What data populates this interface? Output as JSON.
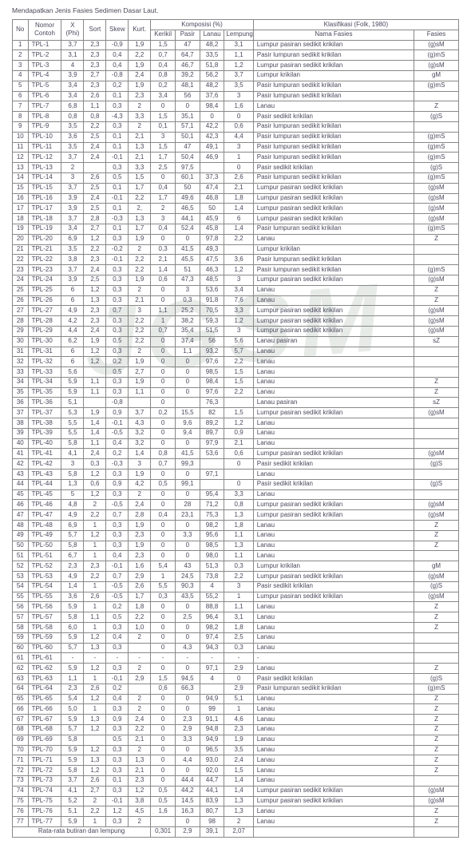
{
  "caption": "Mendapatkan Jenis Fasies Sedimen Dasar Laut.",
  "watermark": "JGSM",
  "headers": {
    "no": "No",
    "nomor_contoh": "Nomor Contoh",
    "x_phi": "X (Phi)",
    "sort": "Sort",
    "skew": "Skew",
    "kurt": "Kurt.",
    "komposisi": "Komposisi (%)",
    "kerikil": "Kerikil",
    "pasir": "Pasir",
    "lanau": "Lanau",
    "lempung": "Lempung",
    "klasifikasi": "Klasifikasi (Folk, 1980)",
    "nama_fasies": "Nama Fasies",
    "fasies": "Fasies"
  },
  "footer": {
    "label": "Rata-rata butiran dan lempung",
    "v": [
      "0,301",
      "2,9",
      "39,1",
      "2,07",
      "",
      ""
    ]
  },
  "rows": [
    {
      "n": 1,
      "c": "TPL-1",
      "x": "3,7",
      "so": "2,3",
      "sk": "-0,9",
      "ku": "1,9",
      "kr": "1,5",
      "pa": "47",
      "la": "48,2",
      "le": "3,1",
      "nf": "Lumpur pasiran sedikit krikilan",
      "f": "(g)sM"
    },
    {
      "n": 2,
      "c": "TPL-2",
      "x": "3,1",
      "so": "2,3",
      "sk": "0,4",
      "ku": "2,2",
      "kr": "0,7",
      "pa": "64,7",
      "la": "33,5",
      "le": "1,1",
      "nf": "Pasir lumpuran sedikit krikilan",
      "f": "(g)mS"
    },
    {
      "n": 3,
      "c": "TPL-3",
      "x": "4",
      "so": "2,3",
      "sk": "0,4",
      "ku": "1,9",
      "kr": "0,4",
      "pa": "46,7",
      "la": "51,8",
      "le": "1,2",
      "nf": "Lumpur pasiran sedikit krikilan",
      "f": "(g)sM"
    },
    {
      "n": 4,
      "c": "TPL-4",
      "x": "3,9",
      "so": "2,7",
      "sk": "-0,8",
      "ku": "2,4",
      "kr": "0,8",
      "pa": "39,2",
      "la": "56,2",
      "le": "3,7",
      "nf": "Lumpur krikilan",
      "f": "gM"
    },
    {
      "n": 5,
      "c": "TPL-5",
      "x": "3,4",
      "so": "2,3",
      "sk": "0,2",
      "ku": "1,9",
      "kr": "0,2",
      "pa": "48,1",
      "la": "48,2",
      "le": "3,5",
      "nf": "Pasir lumpuran sedikit krikilan",
      "f": "(g)mS"
    },
    {
      "n": 6,
      "c": "TPL-6",
      "x": "3,4",
      "so": "2,6",
      "sk": "0,1",
      "ku": "2,3",
      "kr": "3,4",
      "pa": "56",
      "la": "37,6",
      "le": "3",
      "nf": "Pasir lumpuran sedikit krikilan",
      "f": ""
    },
    {
      "n": 7,
      "c": "TPL-7",
      "x": "6,8",
      "so": "1,1",
      "sk": "0,3",
      "ku": "2",
      "kr": "0",
      "pa": "0",
      "la": "98,4",
      "le": "1,6",
      "nf": "Lanau",
      "f": "Z"
    },
    {
      "n": 8,
      "c": "TPL-8",
      "x": "0,8",
      "so": "0,8",
      "sk": "-4,3",
      "ku": "3,3",
      "kr": "1,5",
      "pa": "35,1",
      "la": "0",
      "le": "0",
      "nf": "Pasir sedikit krikilan",
      "f": "(g)S"
    },
    {
      "n": 9,
      "c": "TPL-9",
      "x": "3,5",
      "so": "2,2",
      "sk": "0,3",
      "ku": "2",
      "kr": "0,1",
      "pa": "57,1",
      "la": "42,2",
      "le": "0,6",
      "nf": "Pasir lumpuran sedikit krikilan",
      "f": ""
    },
    {
      "n": 10,
      "c": "TPL-10",
      "x": "3,6",
      "so": "2,5",
      "sk": "0,1",
      "ku": "2,1",
      "kr": "3",
      "pa": "50,1",
      "la": "42,3",
      "le": "4,4",
      "nf": "Pasir lumpuran sedikit krikilan",
      "f": "(g)mS"
    },
    {
      "n": 11,
      "c": "TPL-11",
      "x": "3,5",
      "so": "2,4",
      "sk": "0,1",
      "ku": "1,3",
      "kr": "1,5",
      "pa": "47",
      "la": "49,1",
      "le": "3",
      "nf": "Pasir lumpuran sedikit krikilan",
      "f": "(g)mS"
    },
    {
      "n": 12,
      "c": "TPL-12",
      "x": "3,7",
      "so": "2,4",
      "sk": "-0,1",
      "ku": "2,1",
      "kr": "1,7",
      "pa": "50,4",
      "la": "46,9",
      "le": "1",
      "nf": "Pasir lumpuran sedikit krikilan",
      "f": "(g)mS"
    },
    {
      "n": 13,
      "c": "TPL-13",
      "x": "2",
      "so": "",
      "sk": "0,3",
      "ku": "3,3",
      "kr": "2,5",
      "pa": "97,5",
      "la": "",
      "le": "0",
      "nf": "Pasir sedikit krikilan",
      "f": "(g)S"
    },
    {
      "n": 14,
      "c": "TPL-14",
      "x": "3",
      "so": "2,6",
      "sk": "0,5",
      "ku": "1,5",
      "kr": "0",
      "pa": "60,1",
      "la": "37,3",
      "le": "2,6",
      "nf": "Pasir lumpuran sedikit krikilan",
      "f": "(g)mS"
    },
    {
      "n": 15,
      "c": "TPL-15",
      "x": "3,7",
      "so": "2,5",
      "sk": "0,1",
      "ku": "1,7",
      "kr": "0,4",
      "pa": "50",
      "la": "47,4",
      "le": "2,1",
      "nf": "Lumpur pasiran sedikit krikilan",
      "f": "(g)sM"
    },
    {
      "n": 16,
      "c": "TPL-16",
      "x": "3,9",
      "so": "2,4",
      "sk": "-0,1",
      "ku": "2,2",
      "kr": "1,7",
      "pa": "49,6",
      "la": "46,8",
      "le": "1,8",
      "nf": "Lumpur pasiran sedikit krikilan",
      "f": "(g)sM"
    },
    {
      "n": 17,
      "c": "TPL-17",
      "x": "3,9",
      "so": "2,5",
      "sk": "0,1",
      "ku": "2,",
      "kr": "2",
      "pa": "46,5",
      "la": "50",
      "le": "1,4",
      "nf": "Lumpur pasiran sedikit krikilan",
      "f": "(g)sM"
    },
    {
      "n": 18,
      "c": "TPL-18",
      "x": "3,7",
      "so": "2,8",
      "sk": "-0,3",
      "ku": "1,3",
      "kr": "3",
      "pa": "44,1",
      "la": "45,9",
      "le": "6",
      "nf": "Lumpur pasiran sedikit krikilan",
      "f": "(g)sM"
    },
    {
      "n": 19,
      "c": "TPL-19",
      "x": "3,4",
      "so": "2,7",
      "sk": "0,1",
      "ku": "1,7",
      "kr": "0,4",
      "pa": "52,4",
      "la": "45,8",
      "le": "1,4",
      "nf": "Pasir lumpuran sedikit krikilan",
      "f": "(g)mS"
    },
    {
      "n": 20,
      "c": "TPL-20",
      "x": "6,9",
      "so": "1,2",
      "sk": "0,3",
      "ku": "1,9",
      "kr": "0",
      "pa": "0",
      "la": "97,8",
      "le": "2,2",
      "nf": "Lanau",
      "f": "Z"
    },
    {
      "n": 21,
      "c": "TPL-21",
      "x": "3,5",
      "so": "2,2",
      "sk": "-0,2",
      "ku": "2",
      "kr": "0,3",
      "pa": "41,5",
      "la": "49,3",
      "le": "",
      "nf": "Lumpur krikilan",
      "f": ""
    },
    {
      "n": 22,
      "c": "TPL-22",
      "x": "3,8",
      "so": "2,3",
      "sk": "-0,1",
      "ku": "2,2",
      "kr": "2,1",
      "pa": "45,5",
      "la": "47,5",
      "le": "3,6",
      "nf": "Pasir lumpuran sedikit krikilan",
      "f": ""
    },
    {
      "n": 23,
      "c": "TPL-23",
      "x": "3,7",
      "so": "2,4",
      "sk": "0,3",
      "ku": "2,2",
      "kr": "1,4",
      "pa": "51",
      "la": "46,3",
      "le": "1,2",
      "nf": "Pasir lumpuran sedikit krikilan",
      "f": "(g)mS"
    },
    {
      "n": 24,
      "c": "TPL-24",
      "x": "3,9",
      "so": "2,5",
      "sk": "0,3",
      "ku": "1,9",
      "kr": "0,6",
      "pa": "47,3",
      "la": "48,5",
      "le": "3",
      "nf": "Lumpur pasiran sedikit krikilan",
      "f": "(g)sM"
    },
    {
      "n": 25,
      "c": "TPL-25",
      "x": "6",
      "so": "1,2",
      "sk": "0,3",
      "ku": "2",
      "kr": "0",
      "pa": "3",
      "la": "53,6",
      "le": "3,4",
      "nf": "Lanau",
      "f": "Z"
    },
    {
      "n": 26,
      "c": "TPL-26",
      "x": "6",
      "so": "1,3",
      "sk": "0,3",
      "ku": "2,1",
      "kr": "0",
      "pa": "0,3",
      "la": "91,8",
      "le": "7,6",
      "nf": "Lanau",
      "f": "Z"
    },
    {
      "n": 27,
      "c": "TPL-27",
      "x": "4,9",
      "so": "2,3",
      "sk": "0,7",
      "ku": "3",
      "kr": "1,1",
      "pa": "25,2",
      "la": "70,5",
      "le": "3,3",
      "nf": "Lumpur pasiran sedikit krikilan",
      "f": "(g)sM"
    },
    {
      "n": 28,
      "c": "TPL-28",
      "x": "4,2",
      "so": "2,3",
      "sk": "0,3",
      "ku": "2,2",
      "kr": "1",
      "pa": "38,2",
      "la": "59,3",
      "le": "1,2",
      "nf": "Lumpur pasiran sedikit krikilan",
      "f": "(g)sM"
    },
    {
      "n": 29,
      "c": "TPL-29",
      "x": "4,4",
      "so": "2,4",
      "sk": "0,3",
      "ku": "2,2",
      "kr": "0,7",
      "pa": "35,4",
      "la": "51,5",
      "le": "3",
      "nf": "Lumpur pasiran sedikit krikilan",
      "f": "(g)sM"
    },
    {
      "n": 30,
      "c": "TPL-30",
      "x": "6,2",
      "so": "1,9",
      "sk": "0,5",
      "ku": "2,2",
      "kr": "0",
      "pa": "37,4",
      "la": "56",
      "le": "5,6",
      "nf": "Lanau pasiran",
      "f": "sZ"
    },
    {
      "n": 31,
      "c": "TPL-31",
      "x": "6",
      "so": "1,2",
      "sk": "0,3",
      "ku": "2",
      "kr": "0",
      "pa": "1,1",
      "la": "93,2",
      "le": "5,7",
      "nf": "Lanau",
      "f": ""
    },
    {
      "n": 32,
      "c": "TPL-32",
      "x": "6",
      "so": "1,2",
      "sk": "0,2",
      "ku": "1,9",
      "kr": "0",
      "pa": "0",
      "la": "97,6",
      "le": "2,2",
      "nf": "Lanau",
      "f": ""
    },
    {
      "n": 33,
      "c": "TPL-33",
      "x": "5,6",
      "so": "",
      "sk": "0,5",
      "ku": "2,7",
      "kr": "0",
      "pa": "0",
      "la": "98,5",
      "le": "1,5",
      "nf": "Lanau",
      "f": ""
    },
    {
      "n": 34,
      "c": "TPL-34",
      "x": "5,9",
      "so": "1,1",
      "sk": "0,3",
      "ku": "1,9",
      "kr": "0",
      "pa": "0",
      "la": "98,4",
      "le": "1,5",
      "nf": "Lanau",
      "f": "Z"
    },
    {
      "n": 35,
      "c": "TPL-35",
      "x": "5,9",
      "so": "1,1",
      "sk": "0,3",
      "ku": "1,1",
      "kr": "0",
      "pa": "0",
      "la": "97,6",
      "le": "2,2",
      "nf": "Lanau",
      "f": "Z"
    },
    {
      "n": 36,
      "c": "TPL-36",
      "x": "5,1",
      "so": "",
      "sk": "-0,8",
      "ku": "",
      "kr": "0",
      "pa": "",
      "la": "76,3",
      "le": "",
      "nf": "Lanau pasiran",
      "f": "sZ"
    },
    {
      "n": 37,
      "c": "TPL-37",
      "x": "5,3",
      "so": "1,9",
      "sk": "0,9",
      "ku": "3,7",
      "kr": "0,2",
      "pa": "15,5",
      "la": "82",
      "le": "1,5",
      "nf": "Lumpur pasiran sedikit krikilan",
      "f": "(g)sM"
    },
    {
      "n": 38,
      "c": "TPL-38",
      "x": "5,5",
      "so": "1,4",
      "sk": "-0,1",
      "ku": "4,3",
      "kr": "0",
      "pa": "9,6",
      "la": "89,2",
      "le": "1,2",
      "nf": "Lanau",
      "f": ""
    },
    {
      "n": 39,
      "c": "TPL-39",
      "x": "5,5",
      "so": "1,4",
      "sk": "-0,5",
      "ku": "3,2",
      "kr": "0",
      "pa": "9,4",
      "la": "89,7",
      "le": "0,9",
      "nf": "Lanau",
      "f": ""
    },
    {
      "n": 40,
      "c": "TPL-40",
      "x": "5,8",
      "so": "1,1",
      "sk": "0,4",
      "ku": "3,2",
      "kr": "0",
      "pa": "0",
      "la": "97,9",
      "le": "2,1",
      "nf": "Lanau",
      "f": ""
    },
    {
      "n": 41,
      "c": "TPL-41",
      "x": "4,1",
      "so": "2,4",
      "sk": "0,2",
      "ku": "1,4",
      "kr": "0,8",
      "pa": "41,5",
      "la": "53,6",
      "le": "0,6",
      "nf": "Lumpur pasiran sedikit krikilan",
      "f": "(g)sM"
    },
    {
      "n": 42,
      "c": "TPL-42",
      "x": "3",
      "so": "0,3",
      "sk": "-0,3",
      "ku": "3",
      "kr": "0,7",
      "pa": "99,3",
      "la": "",
      "le": "0",
      "nf": "Pasir sedikit krikilan",
      "f": "(g)S"
    },
    {
      "n": 43,
      "c": "TPL-43",
      "x": "5,8",
      "so": "1,2",
      "sk": "0,3",
      "ku": "1,9",
      "kr": "0",
      "pa": "0",
      "la": "97,1",
      "le": "",
      "nf": "Lanau",
      "f": ""
    },
    {
      "n": 44,
      "c": "TPL-44",
      "x": "1,3",
      "so": "0,6",
      "sk": "0,9",
      "ku": "4,2",
      "kr": "0,5",
      "pa": "99,1",
      "la": "",
      "le": "0",
      "nf": "Pasir sedikit krikilan",
      "f": "(g)S"
    },
    {
      "n": 45,
      "c": "TPL-45",
      "x": "5",
      "so": "1,2",
      "sk": "0,3",
      "ku": "2",
      "kr": "0",
      "pa": "0",
      "la": "95,4",
      "le": "3,3",
      "nf": "Lanau",
      "f": ""
    },
    {
      "n": 46,
      "c": "TPL-46",
      "x": "4,8",
      "so": "2",
      "sk": "-0,5",
      "ku": "2,4",
      "kr": "0",
      "pa": "28",
      "la": "71,2",
      "le": "0,8",
      "nf": "Lumpur pasiran sedikit krikilan",
      "f": "(g)sM"
    },
    {
      "n": 47,
      "c": "TPL-47",
      "x": "4,9",
      "so": "2,2",
      "sk": "0,7",
      "ku": "2,8",
      "kr": "0,4",
      "pa": "23,1",
      "la": "75,3",
      "le": "1,3",
      "nf": "Lumpur pasiran sedikit krikilan",
      "f": "(g)sM"
    },
    {
      "n": 48,
      "c": "TPL-48",
      "x": "6,9",
      "so": "1",
      "sk": "0,3",
      "ku": "1,9",
      "kr": "0",
      "pa": "0",
      "la": "98,2",
      "le": "1,8",
      "nf": "Lanau",
      "f": "Z"
    },
    {
      "n": 49,
      "c": "TPL-49",
      "x": "5,7",
      "so": "1,2",
      "sk": "0,3",
      "ku": "2,3",
      "kr": "0",
      "pa": "3,3",
      "la": "95,6",
      "le": "1,1",
      "nf": "Lanau",
      "f": "Z"
    },
    {
      "n": 50,
      "c": "TPL-50",
      "x": "5,8",
      "so": "1",
      "sk": "0,3",
      "ku": "1,9",
      "kr": "0",
      "pa": "0",
      "la": "98,5",
      "le": "1,3",
      "nf": "Lanau",
      "f": "Z"
    },
    {
      "n": 51,
      "c": "TPL-51",
      "x": "6,7",
      "so": "1",
      "sk": "0,4",
      "ku": "2,3",
      "kr": "0",
      "pa": "0",
      "la": "98,0",
      "le": "1,1",
      "nf": "Lanau",
      "f": ""
    },
    {
      "n": 52,
      "c": "TPL-52",
      "x": "2,3",
      "so": "2,3",
      "sk": "-0,1",
      "ku": "1,6",
      "kr": "5,4",
      "pa": "43",
      "la": "51,3",
      "le": "0,3",
      "nf": "Lumpur krikilan",
      "f": "gM"
    },
    {
      "n": 53,
      "c": "TPL-53",
      "x": "4,9",
      "so": "2,2",
      "sk": "0,7",
      "ku": "2,9",
      "kr": "1",
      "pa": "24,5",
      "la": "73,8",
      "le": "2,2",
      "nf": "Lumpur pasiran sedikit krikilan",
      "f": "(g)sM"
    },
    {
      "n": 54,
      "c": "TPL-54",
      "x": "1,4",
      "so": "1",
      "sk": "-0,5",
      "ku": "2,6",
      "kr": "5,5",
      "pa": "90,3",
      "la": "4",
      "le": "3",
      "nf": "Pasir sedikit krikilan",
      "f": "(g)S"
    },
    {
      "n": 55,
      "c": "TPL-55",
      "x": "3,6",
      "so": "2,6",
      "sk": "-0,5",
      "ku": "1,7",
      "kr": "0,3",
      "pa": "43,5",
      "la": "55,2",
      "le": "1",
      "nf": "Lumpur pasiran sedikit krikilan",
      "f": "(g)sM"
    },
    {
      "n": 56,
      "c": "TPL-56",
      "x": "5,9",
      "so": "1",
      "sk": "0,2",
      "ku": "1,8",
      "kr": "0",
      "pa": "0",
      "la": "88,8",
      "le": "1,1",
      "nf": "Lanau",
      "f": "Z"
    },
    {
      "n": 57,
      "c": "TPL-57",
      "x": "5,8",
      "so": "1,1",
      "sk": "0,5",
      "ku": "2,2",
      "kr": "0",
      "pa": "2,5",
      "la": "96,4",
      "le": "3,1",
      "nf": "Lanau",
      "f": "Z"
    },
    {
      "n": 58,
      "c": "TPL-58",
      "x": "6,0",
      "so": "1",
      "sk": "0,3",
      "ku": "1,0",
      "kr": "0",
      "pa": "0",
      "la": "98,2",
      "le": "1,8",
      "nf": "Lanau",
      "f": "Z"
    },
    {
      "n": 59,
      "c": "TPL-59",
      "x": "5,9",
      "so": "1,2",
      "sk": "0,4",
      "ku": "2",
      "kr": "0",
      "pa": "0",
      "la": "97,4",
      "le": "2,5",
      "nf": "Lanau",
      "f": ""
    },
    {
      "n": 60,
      "c": "TPL-60",
      "x": "5,7",
      "so": "1,3",
      "sk": "0,3",
      "ku": "",
      "kr": "0",
      "pa": "4,3",
      "la": "94,3",
      "le": "0,3",
      "nf": "Lanau",
      "f": ""
    },
    {
      "n": 61,
      "c": "TPL-61",
      "x": "-",
      "so": "-",
      "sk": "-",
      "ku": "-",
      "kr": "-",
      "pa": "-",
      "la": "-",
      "le": "-",
      "nf": "-",
      "f": ""
    },
    {
      "n": 62,
      "c": "TPL-62",
      "x": "5,9",
      "so": "1,2",
      "sk": "0,3",
      "ku": "2",
      "kr": "0",
      "pa": "0",
      "la": "97,1",
      "le": "2,9",
      "nf": "Lanau",
      "f": "Z"
    },
    {
      "n": 63,
      "c": "TPL-63",
      "x": "1,1",
      "so": "1",
      "sk": "-0,1",
      "ku": "2,9",
      "kr": "1,5",
      "pa": "94,5",
      "la": "4",
      "le": "0",
      "nf": "Pasir sedikit krikilan",
      "f": "(g)S"
    },
    {
      "n": 64,
      "c": "TPL-64",
      "x": "2,3",
      "so": "2,6",
      "sk": "0,2",
      "ku": "",
      "kr": "0,6",
      "pa": "66,3",
      "la": "",
      "le": "2,9",
      "nf": "Pasir lumpuran sedikit krikilan",
      "f": "(g)mS"
    },
    {
      "n": 65,
      "c": "TPL-65",
      "x": "5,4",
      "so": "1,2",
      "sk": "0,4",
      "ku": "2",
      "kr": "0",
      "pa": "0",
      "la": "94,9",
      "le": "5,1",
      "nf": "Lanau",
      "f": "Z"
    },
    {
      "n": 66,
      "c": "TPL-66",
      "x": "5,0",
      "so": "1",
      "sk": "0,3",
      "ku": "2",
      "kr": "0",
      "pa": "0",
      "la": "99",
      "le": "1",
      "nf": "Lanau",
      "f": "Z"
    },
    {
      "n": 67,
      "c": "TPL-67",
      "x": "5,9",
      "so": "1,3",
      "sk": "0,9",
      "ku": "2,4",
      "kr": "0",
      "pa": "2,3",
      "la": "91,1",
      "le": "4,6",
      "nf": "Lanau",
      "f": "Z"
    },
    {
      "n": 68,
      "c": "TPL-68",
      "x": "5,7",
      "so": "1,2",
      "sk": "0,3",
      "ku": "2,2",
      "kr": "0",
      "pa": "2,9",
      "la": "94,8",
      "le": "2,3",
      "nf": "Lanau",
      "f": "Z"
    },
    {
      "n": 69,
      "c": "TPL-69",
      "x": "5,8",
      "so": "",
      "sk": "0,5",
      "ku": "2,1",
      "kr": "0",
      "pa": "3,3",
      "la": "94,9",
      "le": "1,9",
      "nf": "Lanau",
      "f": "Z"
    },
    {
      "n": 70,
      "c": "TPL-70",
      "x": "5,9",
      "so": "1,2",
      "sk": "0,3",
      "ku": "2",
      "kr": "0",
      "pa": "0",
      "la": "96,5",
      "le": "3,5",
      "nf": "Lanau",
      "f": "Z"
    },
    {
      "n": 71,
      "c": "TPL-71",
      "x": "5,9",
      "so": "1,3",
      "sk": "0,3",
      "ku": "1,3",
      "kr": "0",
      "pa": "4,4",
      "la": "93,0",
      "le": "2,4",
      "nf": "Lanau",
      "f": "Z"
    },
    {
      "n": 72,
      "c": "TPL-72",
      "x": "5,8",
      "so": "1,2",
      "sk": "0,3",
      "ku": "2,1",
      "kr": "0",
      "pa": "0",
      "la": "92,0",
      "le": "1,5",
      "nf": "Lanau",
      "f": "Z"
    },
    {
      "n": 73,
      "c": "TPL-73",
      "x": "3,7",
      "so": "2,6",
      "sk": "0,1",
      "ku": "2,3",
      "kr": "0",
      "pa": "44,4",
      "la": "44,7",
      "le": "1,4",
      "nf": "Lanau",
      "f": ""
    },
    {
      "n": 74,
      "c": "TPL-74",
      "x": "4,1",
      "so": "2,7",
      "sk": "0,3",
      "ku": "1,2",
      "kr": "0,5",
      "pa": "44,2",
      "la": "44,1",
      "le": "1,4",
      "nf": "Lumpur pasiran sedikit krikilan",
      "f": "(g)sM"
    },
    {
      "n": 75,
      "c": "TPL-75",
      "x": "5,2",
      "so": "2",
      "sk": "-0,1",
      "ku": "3,8",
      "kr": "0,5",
      "pa": "14,5",
      "la": "83,9",
      "le": "1,3",
      "nf": "Lumpur pasiran sedikit krikilan",
      "f": "(g)sM"
    },
    {
      "n": 76,
      "c": "TPL-76",
      "x": "5,1",
      "so": "2,2",
      "sk": "1,2",
      "ku": "4,5",
      "kr": "1,6",
      "pa": "16,3",
      "la": "80,7",
      "le": "1,3",
      "nf": "Lanau",
      "f": "Z"
    },
    {
      "n": 77,
      "c": "TPL-77",
      "x": "5,9",
      "so": "1",
      "sk": "0,3",
      "ku": "2",
      "kr": "",
      "pa": "0",
      "la": "98",
      "le": "2",
      "nf": "Lanau",
      "f": "Z"
    }
  ]
}
